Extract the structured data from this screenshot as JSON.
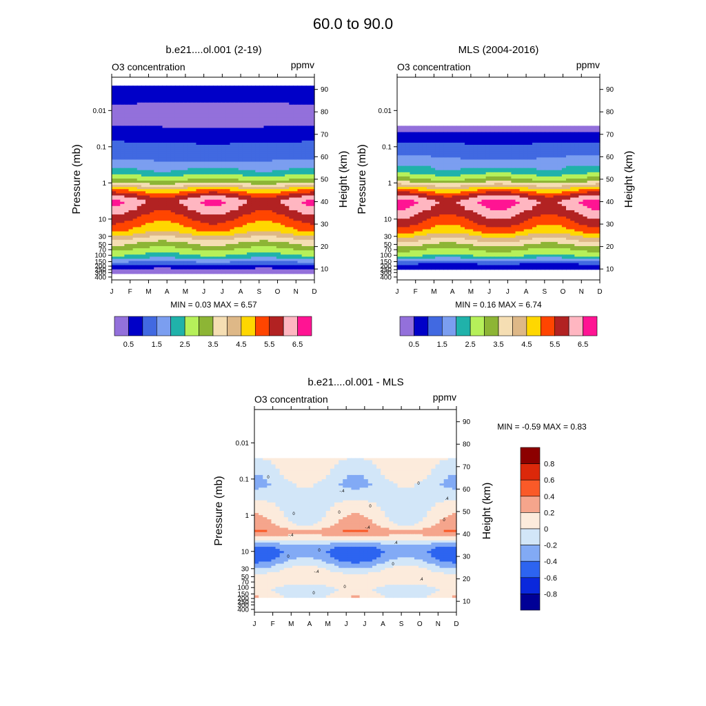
{
  "figure": {
    "title": "60.0 to  90.0"
  },
  "chart_data": [
    {
      "type": "heatmap",
      "title": "b.e21....ol.001 (2-19)",
      "left_string": "O3 concentration",
      "right_string": "ppmv",
      "xlabel": "",
      "ylabel": "Pressure (mb)",
      "y2label": "Height (km)",
      "x_tick_labels": [
        "J",
        "F",
        "M",
        "A",
        "M",
        "J",
        "J",
        "A",
        "S",
        "O",
        "N",
        "D"
      ],
      "y_ticks": [
        {
          "value": 0.01,
          "label": "0.01"
        },
        {
          "value": 0.1,
          "label": "0.1"
        },
        {
          "value": 1,
          "label": "1"
        },
        {
          "value": 10,
          "label": "10"
        },
        {
          "value": 30,
          "label": "30"
        },
        {
          "value": 50,
          "label": "50"
        },
        {
          "value": 70,
          "label": "70"
        },
        {
          "value": 100,
          "label": "100"
        },
        {
          "value": 150,
          "label": "150"
        },
        {
          "value": 200,
          "label": "200"
        },
        {
          "value": 250,
          "label": "250"
        },
        {
          "value": 300,
          "label": "300"
        },
        {
          "value": 400,
          "label": "400"
        }
      ],
      "height_ticks_km": [
        10,
        20,
        30,
        40,
        50,
        60,
        70,
        80,
        90
      ],
      "ylim_mb": [
        0.0012,
        480
      ],
      "min_text": "MIN =   0.03  MAX =   6.57",
      "min_value": 0.03,
      "max_value": 6.57,
      "profile": [
        {
          "km": 8,
          "value": 0.3
        },
        {
          "km": 11,
          "value": 0.6
        },
        {
          "km": 13.5,
          "value": 1.6
        },
        {
          "km": 16,
          "value": 2.4
        },
        {
          "km": 19,
          "value": 3.0
        },
        {
          "km": 22,
          "value": 3.6
        },
        {
          "km": 27,
          "value": 4.8
        },
        {
          "km": 32,
          "value": 5.4
        },
        {
          "km": 37,
          "value": 6.0
        },
        {
          "km": 40,
          "value": 6.25
        },
        {
          "km": 43,
          "value": 5.6
        },
        {
          "km": 46,
          "value": 4.5
        },
        {
          "km": 49,
          "value": 3.2
        },
        {
          "km": 53,
          "value": 2.2
        },
        {
          "km": 58,
          "value": 1.5
        },
        {
          "km": 65,
          "value": 1.1
        },
        {
          "km": 72,
          "value": 0.55
        },
        {
          "km": 80,
          "value": 0.25
        },
        {
          "km": 87,
          "value": 0.7
        },
        {
          "km": 92,
          "value": 0.9
        }
      ],
      "valid_km": [
        8,
        92
      ]
    },
    {
      "type": "heatmap",
      "title": "MLS (2004-2016)",
      "left_string": "O3 concentration",
      "right_string": "ppmv",
      "xlabel": "",
      "ylabel": "Pressure (mb)",
      "y2label": "Height (km)",
      "x_tick_labels": [
        "J",
        "F",
        "M",
        "A",
        "M",
        "J",
        "J",
        "A",
        "S",
        "O",
        "N",
        "D"
      ],
      "y_ticks": [
        {
          "value": 0.01,
          "label": "0.01"
        },
        {
          "value": 0.1,
          "label": "0.1"
        },
        {
          "value": 1,
          "label": "1"
        },
        {
          "value": 10,
          "label": "10"
        },
        {
          "value": 30,
          "label": "30"
        },
        {
          "value": 50,
          "label": "50"
        },
        {
          "value": 70,
          "label": "70"
        },
        {
          "value": 100,
          "label": "100"
        },
        {
          "value": 150,
          "label": "150"
        },
        {
          "value": 200,
          "label": "200"
        },
        {
          "value": 250,
          "label": "250"
        },
        {
          "value": 300,
          "label": "300"
        },
        {
          "value": 400,
          "label": "400"
        }
      ],
      "height_ticks_km": [
        10,
        20,
        30,
        40,
        50,
        60,
        70,
        80,
        90
      ],
      "ylim_mb": [
        0.0012,
        480
      ],
      "min_text": "MIN =   0.16  MAX =   6.74",
      "min_value": 0.16,
      "max_value": 6.74,
      "profile": [
        {
          "km": 10,
          "value": 0.5
        },
        {
          "km": 12,
          "value": 0.9
        },
        {
          "km": 14,
          "value": 1.7
        },
        {
          "km": 16,
          "value": 2.5
        },
        {
          "km": 19,
          "value": 3.1
        },
        {
          "km": 22,
          "value": 3.8
        },
        {
          "km": 27,
          "value": 5.0
        },
        {
          "km": 32,
          "value": 5.6
        },
        {
          "km": 37,
          "value": 6.2
        },
        {
          "km": 40,
          "value": 6.4
        },
        {
          "km": 43,
          "value": 5.7
        },
        {
          "km": 46,
          "value": 4.6
        },
        {
          "km": 49,
          "value": 3.3
        },
        {
          "km": 53,
          "value": 2.3
        },
        {
          "km": 58,
          "value": 1.6
        },
        {
          "km": 63,
          "value": 1.3
        },
        {
          "km": 68,
          "value": 0.8
        },
        {
          "km": 73,
          "value": 0.3
        }
      ],
      "valid_km": [
        10,
        74
      ]
    },
    {
      "type": "heatmap",
      "title": "b.e21....ol.001 - MLS",
      "left_string": "O3 concentration",
      "right_string": "ppmv",
      "xlabel": "",
      "ylabel": "Pressure (mb)",
      "y2label": "Height (km)",
      "x_tick_labels": [
        "J",
        "F",
        "M",
        "A",
        "M",
        "J",
        "J",
        "A",
        "S",
        "O",
        "N",
        "D"
      ],
      "y_ticks": [
        {
          "value": 0.01,
          "label": "0.01"
        },
        {
          "value": 0.1,
          "label": "0.1"
        },
        {
          "value": 1,
          "label": "1"
        },
        {
          "value": 10,
          "label": "10"
        },
        {
          "value": 30,
          "label": "30"
        },
        {
          "value": 50,
          "label": "50"
        },
        {
          "value": 70,
          "label": "70"
        },
        {
          "value": 100,
          "label": "100"
        },
        {
          "value": 150,
          "label": "150"
        },
        {
          "value": 200,
          "label": "200"
        },
        {
          "value": 250,
          "label": "250"
        },
        {
          "value": 300,
          "label": "300"
        },
        {
          "value": 400,
          "label": "400"
        }
      ],
      "height_ticks_km": [
        10,
        20,
        30,
        40,
        50,
        60,
        70,
        80,
        90
      ],
      "ylim_mb": [
        0.0012,
        480
      ],
      "min_text": "MIN =  -0.59  MAX =   0.83",
      "min_value": -0.59,
      "max_value": 0.83,
      "profile": [
        {
          "km": 12,
          "value": 0.05
        },
        {
          "km": 15,
          "value": -0.05
        },
        {
          "km": 18,
          "value": 0.05
        },
        {
          "km": 22,
          "value": 0.1
        },
        {
          "km": 26,
          "value": -0.15
        },
        {
          "km": 29,
          "value": -0.35
        },
        {
          "km": 32,
          "value": -0.45
        },
        {
          "km": 35,
          "value": -0.3
        },
        {
          "km": 38,
          "value": 0.1
        },
        {
          "km": 41,
          "value": 0.35
        },
        {
          "km": 44,
          "value": 0.15
        },
        {
          "km": 48,
          "value": 0.05
        },
        {
          "km": 55,
          "value": -0.05
        },
        {
          "km": 62,
          "value": -0.12
        },
        {
          "km": 70,
          "value": 0.05
        }
      ],
      "valid_km": [
        12,
        74
      ],
      "contour_labels": [
        "0",
        "0",
        "0",
        "0",
        "0",
        ".4",
        ".4",
        ".4",
        "-.4",
        "-.4",
        "-.4",
        "-.4",
        "0",
        "0",
        "0",
        "0",
        "0",
        "0"
      ]
    }
  ],
  "colorbar_full": {
    "labels": [
      "0.5",
      "1.5",
      "2.5",
      "3.5",
      "4.5",
      "5.5",
      "6.5"
    ],
    "levels": [
      0.5,
      1,
      1.5,
      2,
      2.5,
      3,
      3.5,
      4,
      4.5,
      5,
      5.5,
      6,
      6.5
    ],
    "colors": [
      "#9370DB",
      "#0000C8",
      "#4169E1",
      "#7B9EF0",
      "#20B2AA",
      "#B6F05A",
      "#8DB535",
      "#F5DEB3",
      "#DEB887",
      "#FFD700",
      "#FF4500",
      "#B22222",
      "#FFB6C1",
      "#FF1493"
    ]
  },
  "colorbar_diff": {
    "labels": [
      "0.8",
      "0.6",
      "0.4",
      "0.2",
      "0",
      "-0.2",
      "-0.4",
      "-0.6",
      "-0.8"
    ],
    "levels": [
      -0.8,
      -0.6,
      -0.4,
      -0.2,
      0,
      0.2,
      0.4,
      0.6,
      0.8
    ],
    "colors": [
      "#000096",
      "#0A28DC",
      "#2D64F0",
      "#82AAF5",
      "#D2E6F8",
      "#FCEBDC",
      "#F5A58C",
      "#FA5A28",
      "#DC280A",
      "#8C0000"
    ]
  }
}
